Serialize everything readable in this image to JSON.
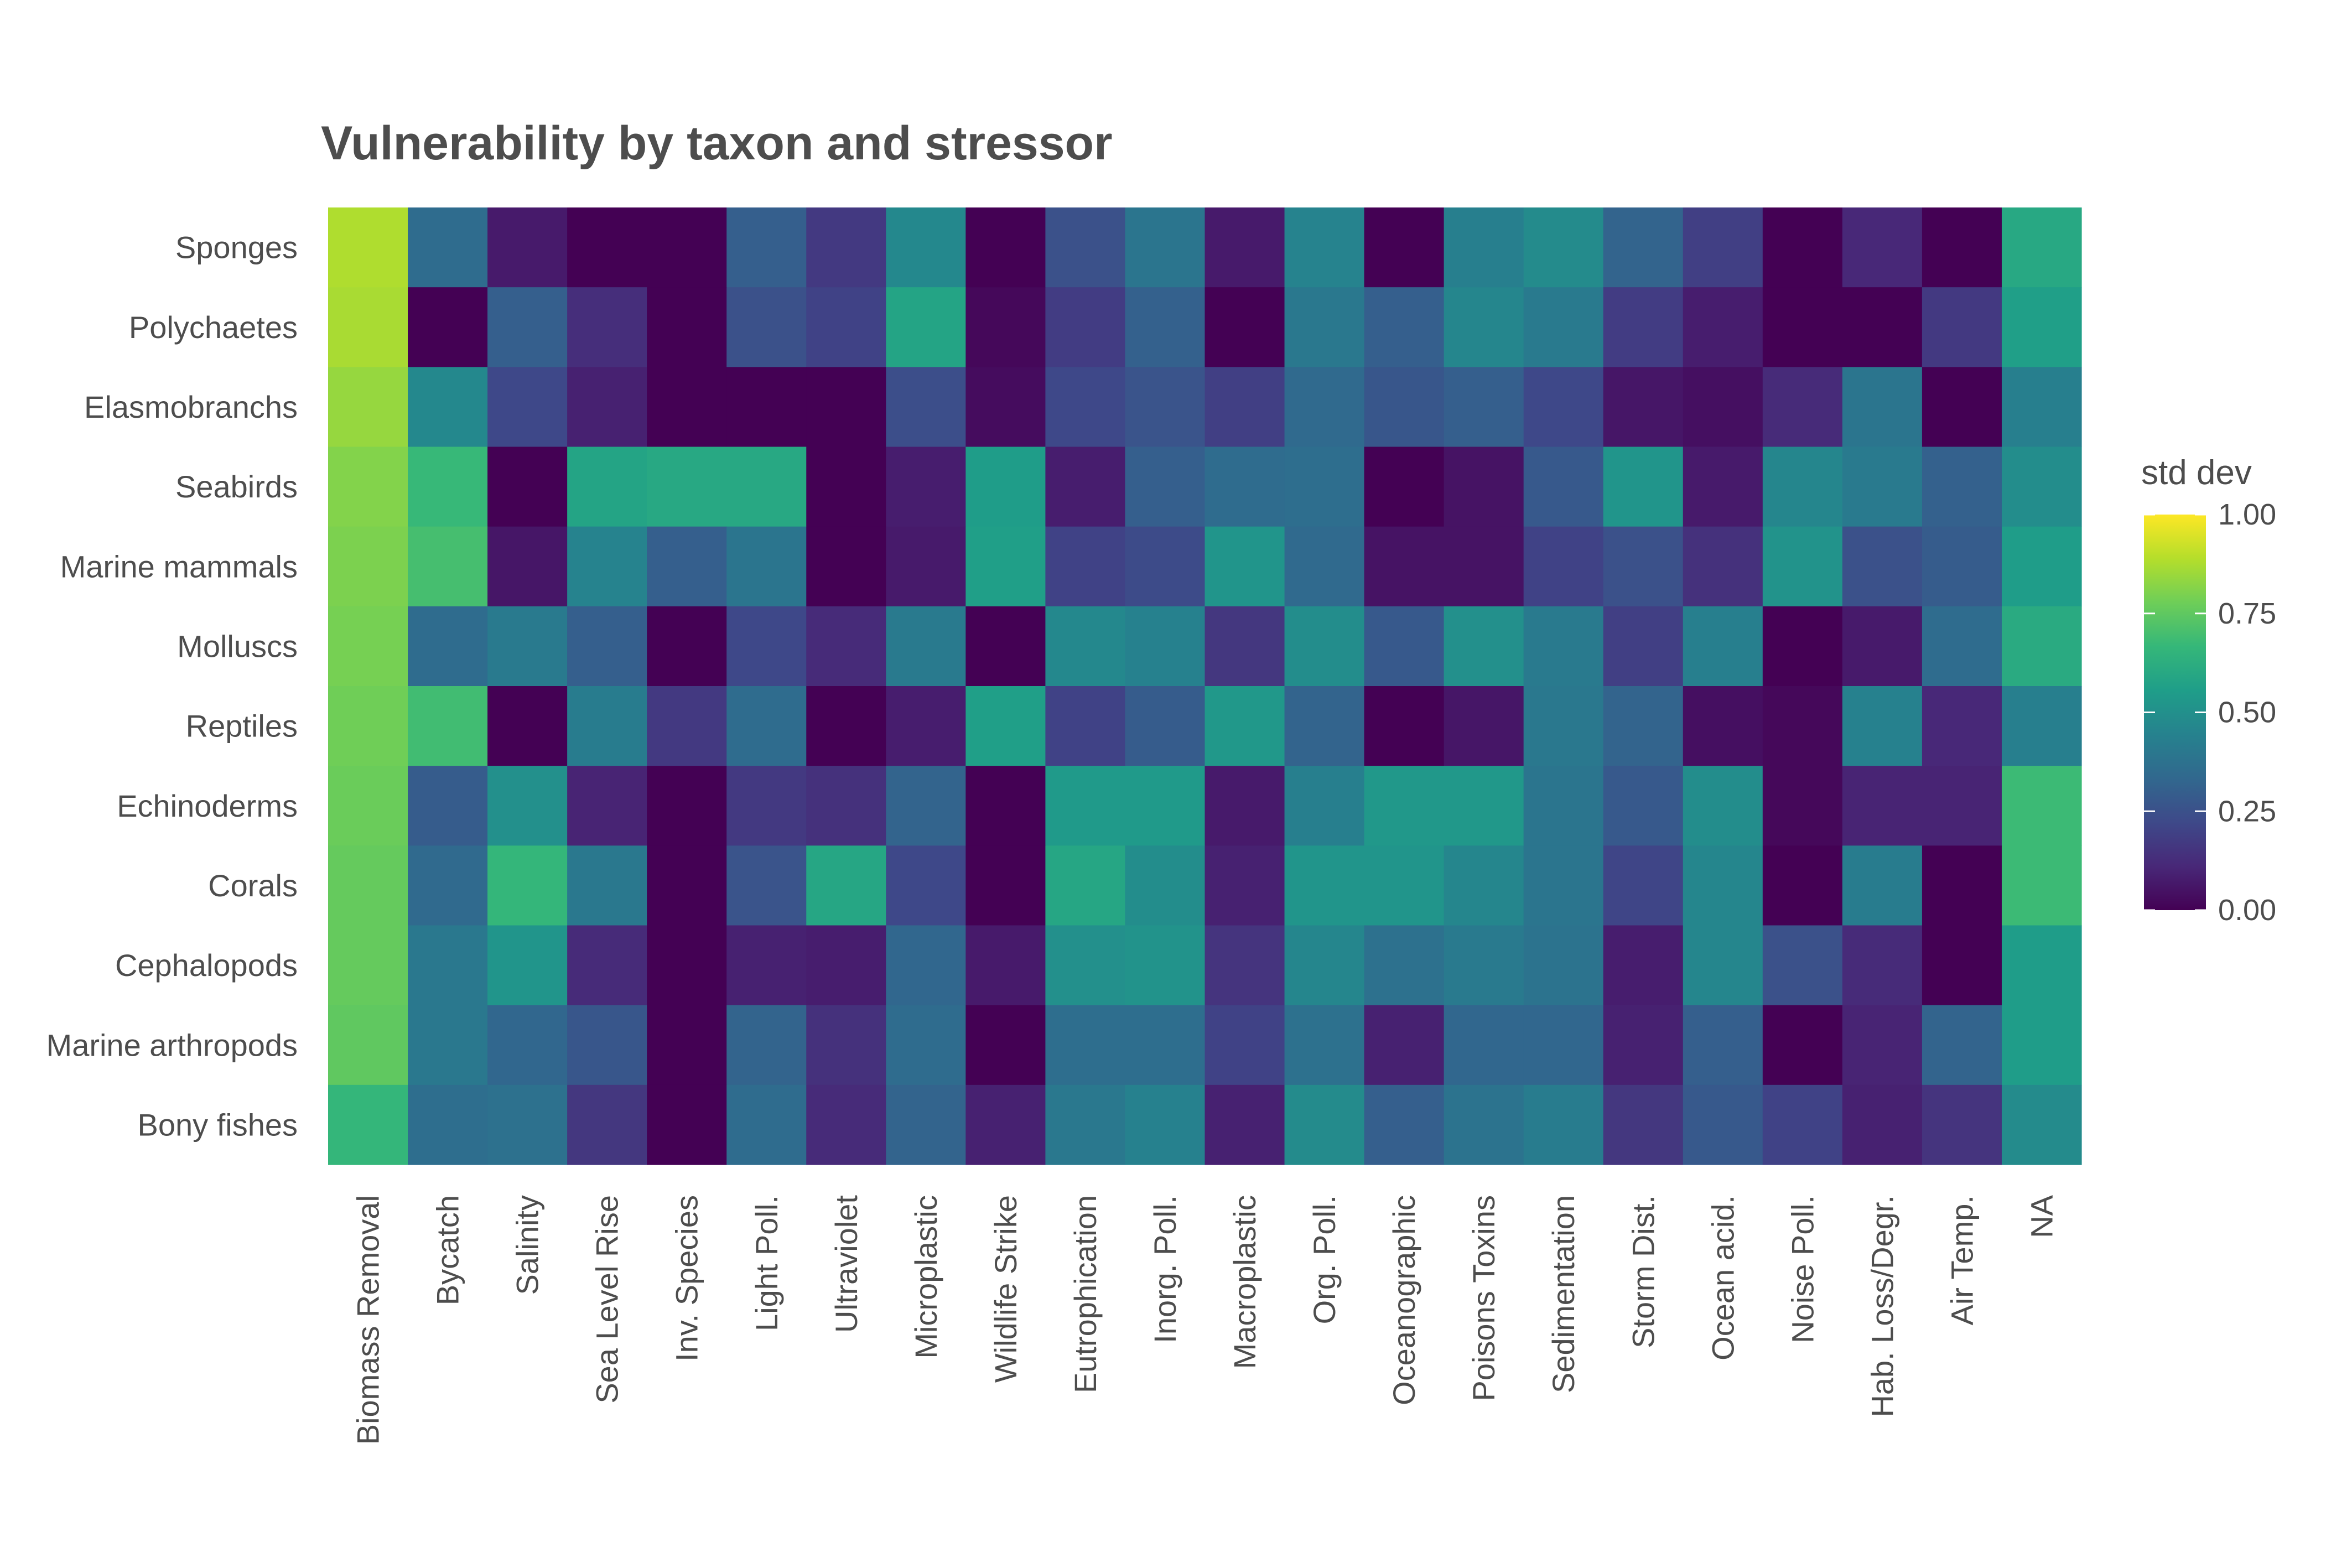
{
  "chart_data": {
    "type": "heatmap",
    "title": "Vulnerability by taxon and stressor",
    "xlabel": "",
    "ylabel": "",
    "x_categories": [
      "Biomass Removal",
      "Bycatch",
      "Salinity",
      "Sea Level Rise",
      "Inv. Species",
      "Light Poll.",
      "Ultraviolet",
      "Microplastic",
      "Wildlife Strike",
      "Eutrophication",
      "Inorg. Poll.",
      "Macroplastic",
      "Org. Poll.",
      "Oceanographic",
      "Poisons Toxins",
      "Sedimentation",
      "Storm Dist.",
      "Ocean acid.",
      "Noise Poll.",
      "Hab. Loss/Degr.",
      "Air Temp.",
      "NA"
    ],
    "y_categories": [
      "Sponges",
      "Polychaetes",
      "Elasmobranchs",
      "Seabirds",
      "Marine mammals",
      "Molluscs",
      "Reptiles",
      "Echinoderms",
      "Corals",
      "Cephalopods",
      "Marine arthropods",
      "Bony fishes"
    ],
    "values": [
      [
        0.88,
        0.35,
        0.07,
        0.0,
        0.0,
        0.3,
        0.17,
        0.47,
        0.0,
        0.25,
        0.39,
        0.07,
        0.45,
        0.0,
        0.43,
        0.48,
        0.32,
        0.19,
        0.0,
        0.11,
        0.0,
        0.6
      ],
      [
        0.87,
        0.0,
        0.3,
        0.13,
        0.0,
        0.25,
        0.2,
        0.58,
        0.02,
        0.18,
        0.31,
        0.0,
        0.4,
        0.3,
        0.46,
        0.41,
        0.18,
        0.08,
        0.0,
        0.0,
        0.17,
        0.56
      ],
      [
        0.84,
        0.47,
        0.22,
        0.09,
        0.0,
        0.0,
        0.0,
        0.24,
        0.03,
        0.22,
        0.26,
        0.19,
        0.34,
        0.27,
        0.3,
        0.22,
        0.06,
        0.04,
        0.12,
        0.39,
        0.0,
        0.43
      ],
      [
        0.81,
        0.67,
        0.0,
        0.58,
        0.6,
        0.6,
        0.0,
        0.08,
        0.55,
        0.08,
        0.3,
        0.35,
        0.36,
        0.0,
        0.05,
        0.28,
        0.52,
        0.07,
        0.46,
        0.41,
        0.31,
        0.49
      ],
      [
        0.8,
        0.7,
        0.06,
        0.45,
        0.3,
        0.39,
        0.0,
        0.07,
        0.56,
        0.2,
        0.23,
        0.52,
        0.34,
        0.05,
        0.05,
        0.2,
        0.25,
        0.14,
        0.51,
        0.25,
        0.29,
        0.55
      ],
      [
        0.79,
        0.35,
        0.41,
        0.3,
        0.0,
        0.22,
        0.12,
        0.41,
        0.0,
        0.47,
        0.44,
        0.16,
        0.49,
        0.28,
        0.5,
        0.41,
        0.19,
        0.43,
        0.0,
        0.07,
        0.35,
        0.61
      ],
      [
        0.78,
        0.69,
        0.0,
        0.42,
        0.17,
        0.35,
        0.0,
        0.08,
        0.56,
        0.2,
        0.29,
        0.53,
        0.32,
        0.0,
        0.06,
        0.4,
        0.32,
        0.04,
        0.02,
        0.44,
        0.11,
        0.43
      ],
      [
        0.77,
        0.29,
        0.5,
        0.1,
        0.0,
        0.17,
        0.14,
        0.32,
        0.0,
        0.54,
        0.54,
        0.07,
        0.43,
        0.53,
        0.53,
        0.39,
        0.28,
        0.49,
        0.02,
        0.1,
        0.1,
        0.68
      ],
      [
        0.76,
        0.34,
        0.66,
        0.4,
        0.0,
        0.26,
        0.59,
        0.22,
        0.0,
        0.59,
        0.49,
        0.09,
        0.52,
        0.52,
        0.46,
        0.39,
        0.21,
        0.46,
        0.0,
        0.42,
        0.0,
        0.68
      ],
      [
        0.76,
        0.4,
        0.52,
        0.12,
        0.0,
        0.09,
        0.08,
        0.33,
        0.07,
        0.5,
        0.51,
        0.15,
        0.46,
        0.37,
        0.41,
        0.38,
        0.08,
        0.46,
        0.25,
        0.12,
        0.0,
        0.55
      ],
      [
        0.75,
        0.4,
        0.33,
        0.27,
        0.0,
        0.32,
        0.14,
        0.35,
        0.0,
        0.36,
        0.36,
        0.2,
        0.37,
        0.09,
        0.33,
        0.33,
        0.09,
        0.3,
        0.0,
        0.1,
        0.32,
        0.55
      ],
      [
        0.66,
        0.36,
        0.37,
        0.16,
        0.0,
        0.35,
        0.12,
        0.32,
        0.09,
        0.4,
        0.44,
        0.09,
        0.48,
        0.3,
        0.38,
        0.42,
        0.16,
        0.28,
        0.2,
        0.09,
        0.15,
        0.48
      ]
    ],
    "legend": {
      "title": "std dev",
      "position": "right",
      "ticks": [
        "0.00",
        "0.25",
        "0.50",
        "0.75",
        "1.00"
      ],
      "tick_values": [
        0,
        0.25,
        0.5,
        0.75,
        1
      ],
      "range": [
        0,
        1
      ]
    },
    "color_scale": "viridis",
    "grid": false
  }
}
